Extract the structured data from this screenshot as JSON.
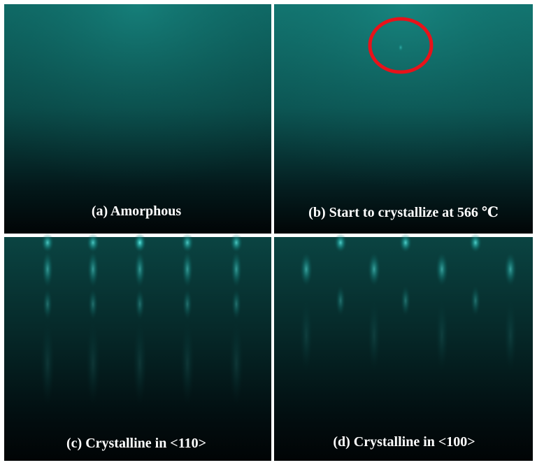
{
  "panels": [
    {
      "label": "(a) Amorphous"
    },
    {
      "label": "(b) Start to crystallize at 566 ℃"
    },
    {
      "label": "(c) Crystalline in <110>"
    },
    {
      "label": "(d) Crystalline in <100>"
    }
  ]
}
